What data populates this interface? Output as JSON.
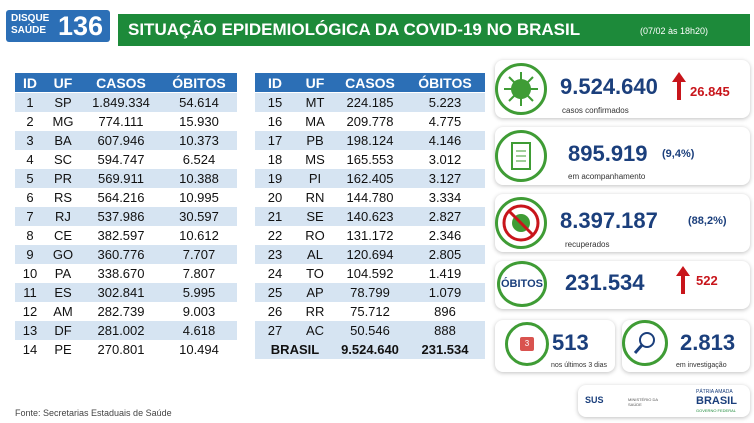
{
  "header": {
    "logo_top": "DISQUE",
    "logo_bottom": "SAÚDE",
    "logo_number": "136",
    "title": "SITUAÇÃO EPIDEMIOLÓGICA DA COVID-19 NO BRASIL",
    "date": "(07/02 às 18h20)"
  },
  "tables": [
    {
      "columns": [
        "ID",
        "UF",
        "CASOS",
        "ÓBITOS"
      ],
      "rows": [
        [
          "1",
          "SP",
          "1.849.334",
          "54.614"
        ],
        [
          "2",
          "MG",
          "774.111",
          "15.930"
        ],
        [
          "3",
          "BA",
          "607.946",
          "10.373"
        ],
        [
          "4",
          "SC",
          "594.747",
          "6.524"
        ],
        [
          "5",
          "PR",
          "569.911",
          "10.388"
        ],
        [
          "6",
          "RS",
          "564.216",
          "10.995"
        ],
        [
          "7",
          "RJ",
          "537.986",
          "30.597"
        ],
        [
          "8",
          "CE",
          "382.597",
          "10.612"
        ],
        [
          "9",
          "GO",
          "360.776",
          "7.707"
        ],
        [
          "10",
          "PA",
          "338.670",
          "7.807"
        ],
        [
          "11",
          "ES",
          "302.841",
          "5.995"
        ],
        [
          "12",
          "AM",
          "282.739",
          "9.003"
        ],
        [
          "13",
          "DF",
          "281.002",
          "4.618"
        ],
        [
          "14",
          "PE",
          "270.801",
          "10.494"
        ]
      ]
    },
    {
      "columns": [
        "ID",
        "UF",
        "CASOS",
        "ÓBITOS"
      ],
      "rows": [
        [
          "15",
          "MT",
          "224.185",
          "5.223"
        ],
        [
          "16",
          "MA",
          "209.778",
          "4.775"
        ],
        [
          "17",
          "PB",
          "198.124",
          "4.146"
        ],
        [
          "18",
          "MS",
          "165.553",
          "3.012"
        ],
        [
          "19",
          "PI",
          "162.405",
          "3.127"
        ],
        [
          "20",
          "RN",
          "144.780",
          "3.334"
        ],
        [
          "21",
          "SE",
          "140.623",
          "2.827"
        ],
        [
          "22",
          "RO",
          "131.172",
          "2.346"
        ],
        [
          "23",
          "AL",
          "120.694",
          "2.805"
        ],
        [
          "24",
          "TO",
          "104.592",
          "1.419"
        ],
        [
          "25",
          "AP",
          "78.799",
          "1.079"
        ],
        [
          "26",
          "RR",
          "75.712",
          "896"
        ],
        [
          "27",
          "AC",
          "50.546",
          "888"
        ]
      ],
      "total": [
        "BRASIL",
        "9.524.640",
        "231.534"
      ]
    }
  ],
  "stats": {
    "confirmed": {
      "value": "9.524.640",
      "delta": "26.845",
      "caption": "casos confirmados"
    },
    "monitoring": {
      "value": "895.919",
      "percent": "(9,4%)",
      "caption": "em acompanhamento"
    },
    "recovered": {
      "value": "8.397.187",
      "percent": "(88,2%)",
      "caption": "recuperados"
    },
    "deaths": {
      "label": "ÓBITOS",
      "value": "231.534",
      "delta": "522"
    },
    "recent": {
      "icon": "3",
      "value": "513",
      "caption": "nos últimos 3 dias"
    },
    "investigation": {
      "value": "2.813",
      "caption": "em investigação"
    }
  },
  "footer": {
    "source": "Fonte: Secretarias Estaduais de Saúde",
    "sus": "SUS",
    "ministry": "MINISTÉRIO DA SAÚDE",
    "slogan": "PÁTRIA AMADA",
    "country": "BRASIL",
    "government": "GOVERNO FEDERAL"
  }
}
